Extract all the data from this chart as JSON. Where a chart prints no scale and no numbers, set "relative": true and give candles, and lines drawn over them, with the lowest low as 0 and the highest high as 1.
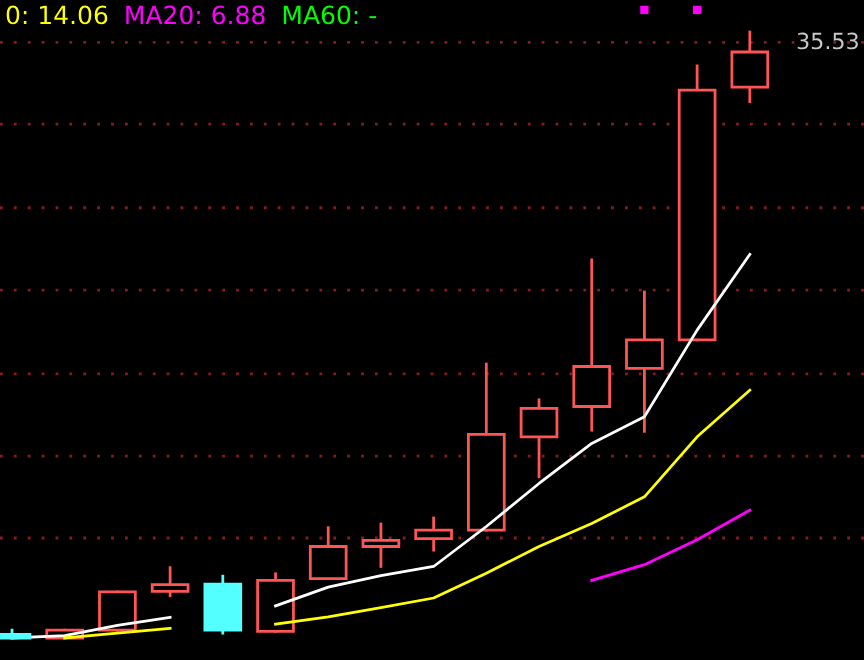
{
  "chart_data": {
    "type": "candlestick",
    "relative": true,
    "legend": "top left",
    "ref_lines": [
      {
        "axis": "y",
        "value": 0.165,
        "color": "#8b1a1a",
        "line_style": "dotted"
      },
      {
        "axis": "y",
        "value": 0.3,
        "color": "#8b1a1a",
        "line_style": "dotted"
      },
      {
        "axis": "y",
        "value": 0.436,
        "color": "#8b1a1a",
        "line_style": "dotted"
      },
      {
        "axis": "y",
        "value": 0.574,
        "color": "#8b1a1a",
        "line_style": "dotted"
      },
      {
        "axis": "y",
        "value": 0.71,
        "color": "#8b1a1a",
        "line_style": "dotted"
      },
      {
        "axis": "y",
        "value": 0.848,
        "color": "#8b1a1a",
        "line_style": "dotted"
      },
      {
        "axis": "y",
        "value": 0.983,
        "color": "#8b1a1a",
        "line_style": "dotted"
      }
    ],
    "categories": [
      null,
      null,
      null,
      null,
      null,
      null,
      null,
      null,
      null,
      null,
      null,
      null,
      null,
      null,
      null
    ],
    "ohlc": [
      [
        0.006,
        0.013,
        0,
        0
      ],
      [
        0,
        0.013,
        0,
        0.013
      ],
      [
        0.013,
        0.076,
        0.013,
        0.076
      ],
      [
        0.077,
        0.116,
        0.07,
        0.088
      ],
      [
        0.089,
        0.102,
        0.008,
        0.013
      ],
      [
        0.011,
        0.106,
        0.011,
        0.095
      ],
      [
        0.098,
        0.182,
        0.098,
        0.151
      ],
      [
        0.151,
        0.188,
        0.118,
        0.161
      ],
      [
        0.164,
        0.198,
        0.145,
        0.178
      ],
      [
        0.178,
        0.452,
        0.178,
        0.336
      ],
      [
        0.332,
        0.393,
        0.266,
        0.379
      ],
      [
        0.382,
        0.624,
        0.343,
        0.448
      ],
      [
        0.445,
        0.571,
        0.341,
        0.492
      ],
      [
        0.492,
        0.944,
        0.492,
        0.904
      ],
      [
        0.909,
        1,
        0.885,
        0.967
      ]
    ],
    "colors": [
      "#54ffff",
      "#ff5555",
      "#ff5555",
      "#ff5555",
      "#54ffff",
      "#ff5555",
      "#ff5555",
      "#ff5555",
      "#ff5555",
      "#ff5555",
      "#ff5555",
      "#ff5555",
      "#ff5555",
      "#ff5555",
      "#ff5555"
    ],
    "series": [
      {
        "type": "line",
        "color": "#ffffff",
        "values": [
          0,
          0.004,
          0.021,
          0.034,
          null,
          0.053,
          0.084,
          0.103,
          0.118,
          0.184,
          0.255,
          0.321,
          0.365,
          0.508,
          0.633
        ]
      },
      {
        "type": "line",
        "name": "0: 14.06",
        "color": "#ffff00",
        "values": [
          null,
          0,
          0.008,
          0.016,
          null,
          0.023,
          0.035,
          0.05,
          0.066,
          0.107,
          0.151,
          0.189,
          0.233,
          0.332,
          0.409
        ]
      },
      {
        "type": "line",
        "name": "MA20: 6.88",
        "color": "#ff00ff",
        "values": [
          null,
          null,
          null,
          null,
          null,
          null,
          null,
          null,
          null,
          null,
          null,
          0.095,
          0.121,
          0.162,
          0.211
        ]
      },
      {
        "type": "line",
        "name": "MA60: -",
        "color": "#00ff00",
        "values": [
          null,
          null,
          null,
          null,
          null,
          null,
          null,
          null,
          null,
          null,
          null,
          null,
          null,
          null,
          null
        ]
      }
    ],
    "annotations": [
      "35.53"
    ]
  }
}
